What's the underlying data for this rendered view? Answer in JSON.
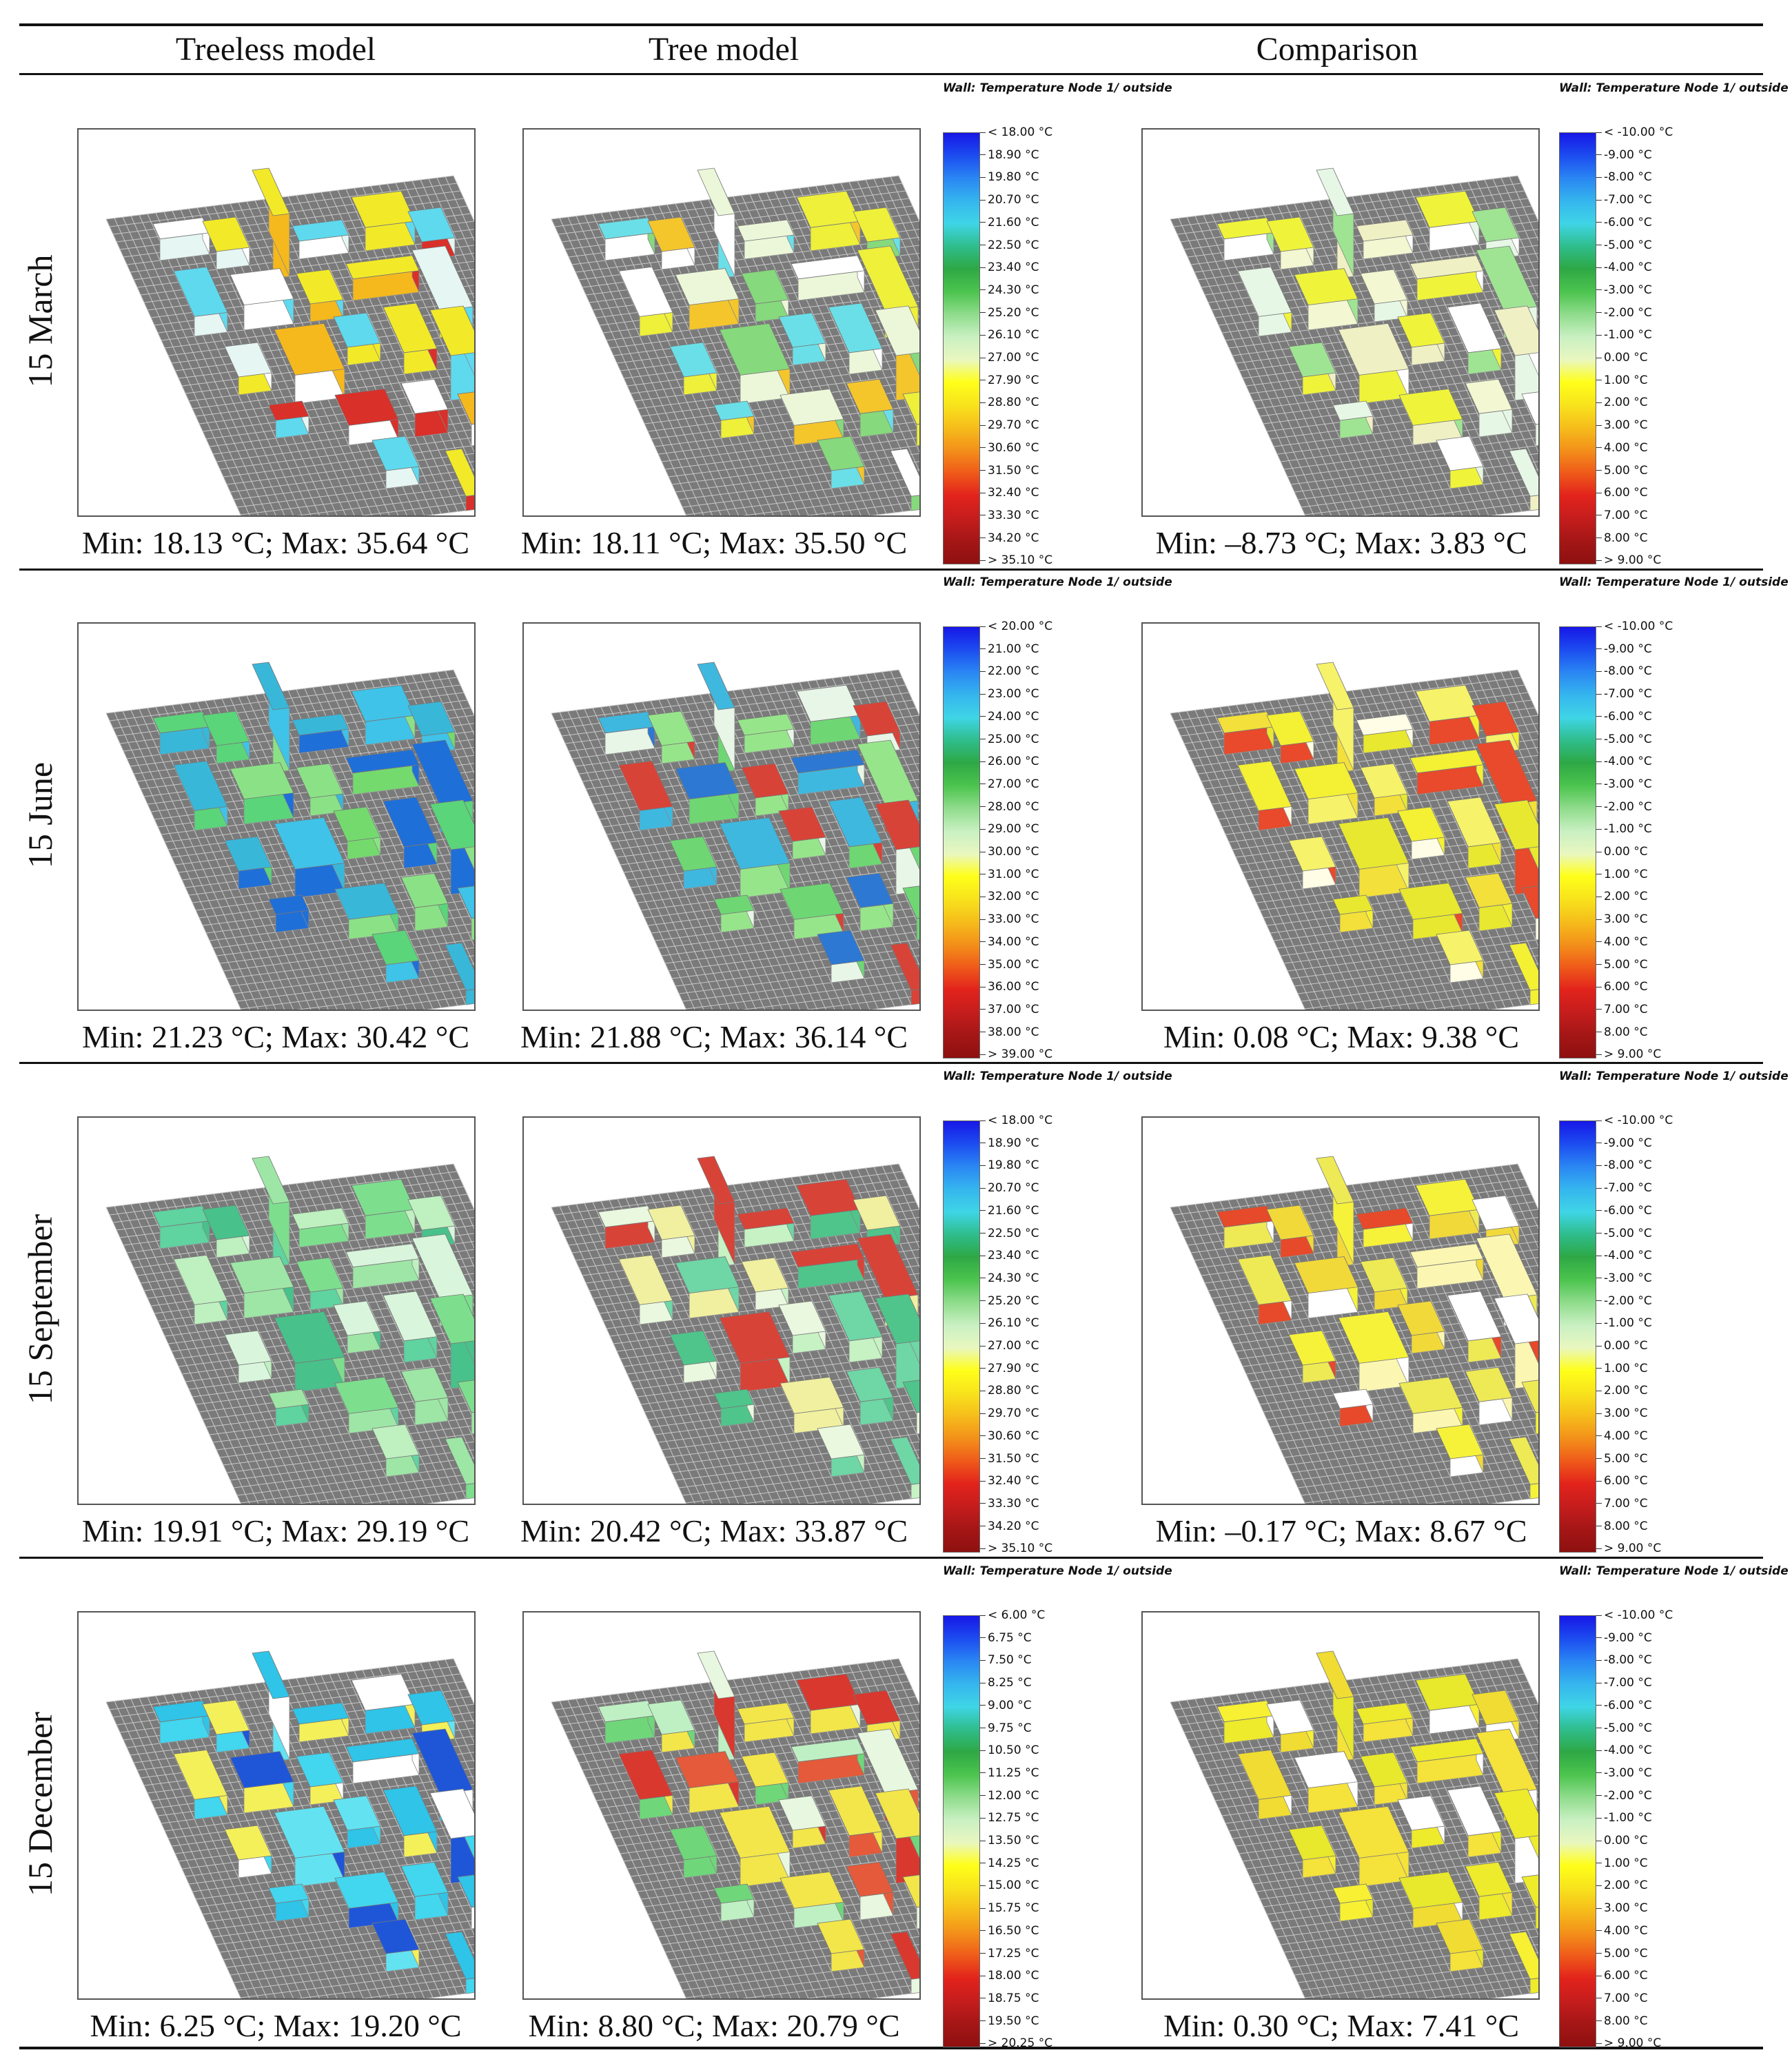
{
  "headers": [
    "Treeless model",
    "Tree model",
    "Comparison"
  ],
  "legend_title": "Wall: Temperature Node 1/ outside",
  "rows": [
    {
      "label": "15 March",
      "captions": [
        "Min: 18.13 °C; Max: 35.64 °C",
        "Min: 18.11 °C; Max: 35.50 °C",
        "Min: –8.73 °C; Max: 3.83 °C"
      ],
      "scale_ticks": [
        "< 18.00 °C",
        "18.90  °C",
        "19.80  °C",
        "20.70  °C",
        "21.60  °C",
        "22.50  °C",
        "23.40  °C",
        "24.30  °C",
        "25.20  °C",
        "26.10  °C",
        "27.00  °C",
        "27.90  °C",
        "28.80  °C",
        "29.70  °C",
        "30.60  °C",
        "31.50  °C",
        "32.40  °C",
        "33.30  °C",
        "34.20  °C",
        "> 35.10 °C"
      ],
      "diff_ticks": [
        "< -10.00 °C",
        "-9.00  °C",
        "-8.00  °C",
        "-7.00  °C",
        "-6.00  °C",
        "-5.00  °C",
        "-4.00  °C",
        "-3.00  °C",
        "-2.00  °C",
        "-1.00  °C",
        "0.00  °C",
        "1.00  °C",
        "2.00  °C",
        "3.00  °C",
        "4.00  °C",
        "5.00  °C",
        "6.00  °C",
        "7.00  °C",
        "8.00  °C",
        "> 9.00 °C"
      ],
      "palette": [
        [
          "#e6f6f2",
          "#5fd9ee",
          "#f2ea28",
          "#f5b91e",
          "#d9302a",
          "#ffffff"
        ],
        [
          "#ecf7da",
          "#6bdfe8",
          "#eef03a",
          "#ffffff",
          "#86d97c",
          "#f4c62c"
        ],
        [
          "#f3f7d2",
          "#ffffff",
          "#eff43a",
          "#9fe493",
          "#e7f7e6",
          "#f0f0c5"
        ]
      ]
    },
    {
      "label": "15 June",
      "captions": [
        "Min: 21.23 °C; Max: 30.42 °C",
        "Min: 21.88 °C; Max: 36.14 °C",
        "Min: 0.08 °C; Max: 9.38 °C"
      ],
      "scale_ticks": [
        "< 20.00 °C",
        "21.00  °C",
        "22.00  °C",
        "23.00  °C",
        "24.00  °C",
        "25.00  °C",
        "26.00  °C",
        "27.00  °C",
        "28.00  °C",
        "29.00  °C",
        "30.00  °C",
        "31.00  °C",
        "32.00  °C",
        "33.00  °C",
        "34.00  °C",
        "35.00  °C",
        "36.00  °C",
        "37.00  °C",
        "38.00  °C",
        "> 39.00 °C"
      ],
      "diff_ticks": [
        "< -10.00 °C",
        "-9.00  °C",
        "-8.00  °C",
        "-7.00  °C",
        "-6.00  °C",
        "-5.00  °C",
        "-4.00  °C",
        "-3.00  °C",
        "-2.00  °C",
        "-1.00  °C",
        "0.00  °C",
        "1.00  °C",
        "2.00  °C",
        "3.00  °C",
        "4.00  °C",
        "5.00  °C",
        "6.00  °C",
        "7.00  °C",
        "8.00  °C",
        "> 9.00 °C"
      ],
      "palette": [
        [
          "#5bd57a",
          "#3fc3e8",
          "#1f6fd8",
          "#8be286",
          "#39b7d9",
          "#74da6e"
        ],
        [
          "#6ed774",
          "#e8f6e8",
          "#3fb8df",
          "#97e58b",
          "#2d78d2",
          "#d84338"
        ],
        [
          "#f4f034",
          "#f6f26a",
          "#fffde6",
          "#e8e830",
          "#f3e03a",
          "#e84a2b"
        ]
      ]
    },
    {
      "label": "15 September",
      "captions": [
        "Min: 19.91 °C; Max: 29.19 °C",
        "Min: 20.42 °C; Max: 33.87 °C",
        "Min: –0.17 °C; Max: 8.67 °C"
      ],
      "scale_ticks": [
        "< 18.00 °C",
        "18.90  °C",
        "19.80  °C",
        "20.70  °C",
        "21.60  °C",
        "22.50  °C",
        "23.40  °C",
        "24.30  °C",
        "25.20  °C",
        "26.10  °C",
        "27.00  °C",
        "27.90  °C",
        "28.80  °C",
        "29.70  °C",
        "30.60  °C",
        "31.50  °C",
        "32.40  °C",
        "33.30  °C",
        "34.20  °C",
        "> 35.10 °C"
      ],
      "diff_ticks": [
        "< -10.00 °C",
        "-9.00  °C",
        "-8.00  °C",
        "-7.00  °C",
        "-6.00  °C",
        "-5.00  °C",
        "-4.00  °C",
        "-3.00  °C",
        "-2.00  °C",
        "-1.00  °C",
        "0.00  °C",
        "1.00  °C",
        "2.00  °C",
        "3.00  °C",
        "4.00  °C",
        "5.00  °C",
        "6.00  °C",
        "7.00  °C",
        "8.00  °C",
        "> 9.00 °C"
      ],
      "palette": [
        [
          "#bff0c0",
          "#9ee6a6",
          "#5fd3a0",
          "#d9f6dc",
          "#48c18b",
          "#7ddf8e"
        ],
        [
          "#c7f2c4",
          "#f0f0a0",
          "#6fd6a6",
          "#e9f8df",
          "#4fc58b",
          "#d84338"
        ],
        [
          "#f6f23a",
          "#fbf7b2",
          "#ffffff",
          "#eeea55",
          "#f2d93a",
          "#e64a2a"
        ]
      ]
    },
    {
      "label": "15 December",
      "captions": [
        "Min: 6.25 °C; Max: 19.20 °C",
        "Min: 8.80 °C; Max: 20.79 °C",
        "Min: 0.30 °C; Max: 7.41 °C"
      ],
      "scale_ticks": [
        "< 6.00 °C",
        "6.75  °C",
        "7.50  °C",
        "8.25  °C",
        "9.00  °C",
        "9.75  °C",
        "10.50  °C",
        "11.25  °C",
        "12.00  °C",
        "12.75  °C",
        "13.50  °C",
        "14.25  °C",
        "15.00  °C",
        "15.75  °C",
        "16.50  °C",
        "17.25  °C",
        "18.00  °C",
        "18.75  °C",
        "19.50  °C",
        "> 20.25 °C"
      ],
      "diff_ticks": [
        "< -10.00 °C",
        "-9.00  °C",
        "-8.00  °C",
        "-7.00  °C",
        "-6.00  °C",
        "-5.00  °C",
        "-4.00  °C",
        "-3.00  °C",
        "-2.00  °C",
        "-1.00  °C",
        "0.00  °C",
        "1.00  °C",
        "2.00  °C",
        "3.00  °C",
        "4.00  °C",
        "5.00  °C",
        "6.00  °C",
        "7.00  °C",
        "8.00  °C",
        "> 9.00 °C"
      ],
      "palette": [
        [
          "#42d6ef",
          "#63e3f2",
          "#f4f05a",
          "#2fc4e8",
          "#ffffff",
          "#1f56d8"
        ],
        [
          "#e45a3a",
          "#e8f7e0",
          "#f3e64a",
          "#6fd77a",
          "#d9382f",
          "#bff0c4"
        ],
        [
          "#f7f033",
          "#eeea2c",
          "#ffffff",
          "#f5e23a",
          "#e8e82c",
          "#f0dc32"
        ]
      ]
    }
  ]
}
